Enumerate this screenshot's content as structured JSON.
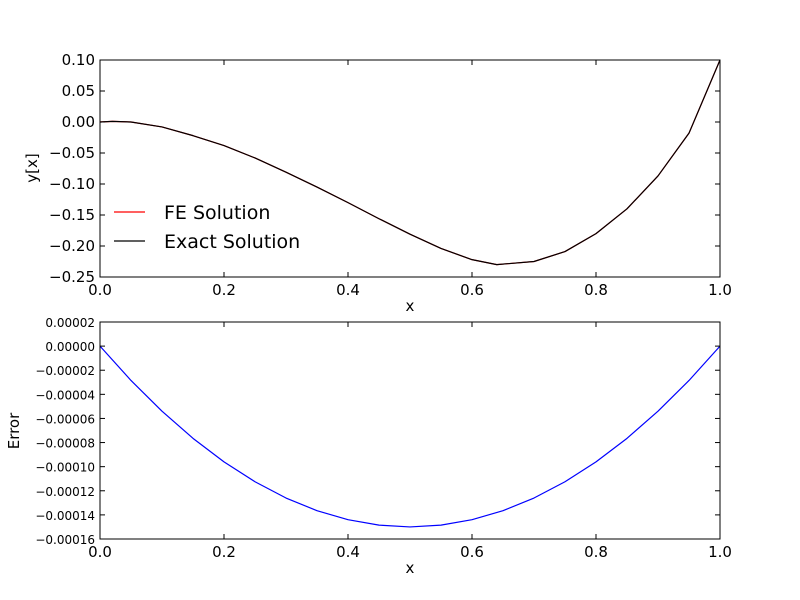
{
  "chart_data": [
    {
      "type": "line",
      "xlabel": "x",
      "ylabel": "y[x]",
      "xlim": [
        0.0,
        1.0
      ],
      "ylim": [
        -0.25,
        0.1
      ],
      "xticks": [
        0.0,
        0.2,
        0.4,
        0.6,
        0.8,
        1.0
      ],
      "xtick_labels": [
        "0.0",
        "0.2",
        "0.4",
        "0.6",
        "0.8",
        "1.0"
      ],
      "yticks": [
        0.1,
        0.05,
        0.0,
        -0.05,
        -0.1,
        -0.15,
        -0.2,
        -0.25
      ],
      "ytick_labels": [
        "0.10",
        "0.05",
        "0.00",
        "−0.05",
        "−0.10",
        "−0.15",
        "−0.20",
        "−0.25"
      ],
      "grid": false,
      "legend_position": "lower-left",
      "series": [
        {
          "name": "FE Solution",
          "color": "#ff0000",
          "x": [
            0.0,
            0.02,
            0.05,
            0.1,
            0.15,
            0.2,
            0.25,
            0.3,
            0.35,
            0.4,
            0.45,
            0.5,
            0.55,
            0.6,
            0.64,
            0.7,
            0.75,
            0.8,
            0.85,
            0.9,
            0.95,
            1.0
          ],
          "y": [
            0.0,
            0.001,
            0.0,
            -0.008,
            -0.022,
            -0.038,
            -0.058,
            -0.081,
            -0.105,
            -0.13,
            -0.156,
            -0.181,
            -0.204,
            -0.222,
            -0.23,
            -0.225,
            -0.209,
            -0.18,
            -0.14,
            -0.087,
            -0.018,
            0.1
          ]
        },
        {
          "name": "Exact Solution",
          "color": "#000000",
          "x": [
            0.0,
            0.02,
            0.05,
            0.1,
            0.15,
            0.2,
            0.25,
            0.3,
            0.35,
            0.4,
            0.45,
            0.5,
            0.55,
            0.6,
            0.64,
            0.7,
            0.75,
            0.8,
            0.85,
            0.9,
            0.95,
            1.0
          ],
          "y": [
            0.0,
            0.001,
            0.0,
            -0.008,
            -0.022,
            -0.038,
            -0.058,
            -0.081,
            -0.105,
            -0.13,
            -0.156,
            -0.181,
            -0.204,
            -0.222,
            -0.23,
            -0.225,
            -0.209,
            -0.18,
            -0.14,
            -0.087,
            -0.018,
            0.1
          ]
        }
      ]
    },
    {
      "type": "line",
      "xlabel": "x",
      "ylabel": "Error",
      "xlim": [
        0.0,
        1.0
      ],
      "ylim": [
        -0.00016,
        2e-05
      ],
      "xticks": [
        0.0,
        0.2,
        0.4,
        0.6,
        0.8,
        1.0
      ],
      "xtick_labels": [
        "0.0",
        "0.2",
        "0.4",
        "0.6",
        "0.8",
        "1.0"
      ],
      "yticks": [
        2e-05,
        0.0,
        -2e-05,
        -4e-05,
        -6e-05,
        -8e-05,
        -0.0001,
        -0.00012,
        -0.00014,
        -0.00016
      ],
      "ytick_labels": [
        "0.00002",
        "0.00000",
        "−0.00002",
        "−0.00004",
        "−0.00006",
        "−0.00008",
        "−0.00010",
        "−0.00012",
        "−0.00014",
        "−0.00016"
      ],
      "grid": false,
      "series": [
        {
          "color": "#0000ff",
          "x": [
            0.0,
            0.05,
            0.1,
            0.15,
            0.2,
            0.25,
            0.3,
            0.35,
            0.4,
            0.45,
            0.5,
            0.55,
            0.6,
            0.65,
            0.7,
            0.75,
            0.8,
            0.85,
            0.9,
            0.95,
            1.0
          ],
          "y": [
            0.0,
            -2.85e-05,
            -5.4e-05,
            -7.65e-05,
            -9.6e-05,
            -0.0001125,
            -0.000126,
            -0.0001365,
            -0.000144,
            -0.0001485,
            -0.00015,
            -0.0001485,
            -0.000144,
            -0.0001365,
            -0.000126,
            -0.0001125,
            -9.6e-05,
            -7.65e-05,
            -5.4e-05,
            -2.85e-05,
            0.0
          ]
        }
      ]
    }
  ]
}
